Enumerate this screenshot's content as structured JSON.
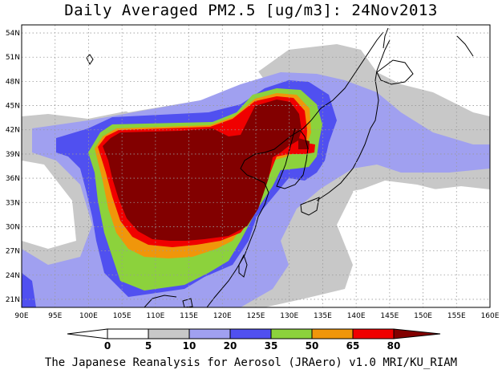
{
  "title": "Daily Averaged PM2.5 [ug/m3]: 24Nov2013",
  "footer": "The Japanese Reanalysis for Aerosol (JRAero) v1.0 MRI/KU_RIAM",
  "map": {
    "lon_range": [
      90,
      160
    ],
    "lat_range": [
      20,
      55
    ],
    "lat_ticks": [
      "54N",
      "51N",
      "48N",
      "45N",
      "42N",
      "39N",
      "36N",
      "33N",
      "30N",
      "27N",
      "24N",
      "21N"
    ],
    "lat_values": [
      54,
      51,
      48,
      45,
      42,
      39,
      36,
      33,
      30,
      27,
      24,
      21
    ],
    "lon_ticks": [
      "90E",
      "95E",
      "100E",
      "105E",
      "110E",
      "115E",
      "120E",
      "125E",
      "130E",
      "135E",
      "140E",
      "145E",
      "150E",
      "155E",
      "160E"
    ],
    "lon_values": [
      90,
      95,
      100,
      105,
      110,
      115,
      120,
      125,
      130,
      135,
      140,
      145,
      150,
      155,
      160
    ],
    "grid": "dotted"
  },
  "colorbar": {
    "labels": [
      "0",
      "5",
      "10",
      "20",
      "35",
      "50",
      "65",
      "80"
    ],
    "colors": [
      "#ffffff",
      "#c8c8c8",
      "#a0a0f0",
      "#5050f0",
      "#8cd23c",
      "#f0960a",
      "#f00000",
      "#820000"
    ]
  },
  "palette": {
    "gray": "#c8c8c8",
    "lightblue": "#a0a0f0",
    "blue": "#5050f0",
    "green": "#8cd23c",
    "orange": "#f0960a",
    "red": "#f00000",
    "maroon": "#820000"
  }
}
